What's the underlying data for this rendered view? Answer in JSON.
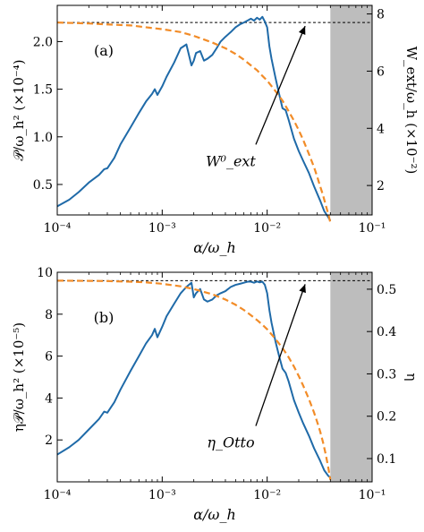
{
  "colors": {
    "blue": "#1f6aa8",
    "orange": "#f28c28",
    "shade": "#bdbdbd",
    "ref": "#000000"
  },
  "chart_data": [
    {
      "type": "line",
      "panel_label": "(a)",
      "xlabel": "α/ω_h",
      "ylabel_left": "𝒫/ω_h² (×10⁻⁴)",
      "ylabel_right": "W_ext/ω_h (×10⁻²)",
      "xscale": "log",
      "xlim": [
        0.0001,
        0.1
      ],
      "ylim_left": [
        0.18,
        2.38
      ],
      "ylim_right": [
        0.97,
        8.3
      ],
      "xticks": [
        0.0001,
        0.001,
        0.01,
        0.1
      ],
      "xtick_labels": [
        "10⁻⁴",
        "10⁻³",
        "10⁻²",
        "10⁻¹"
      ],
      "yticks_left": [
        0.5,
        1.0,
        1.5,
        2.0
      ],
      "ytick_labels_left": [
        "0.5",
        "1.0",
        "1.5",
        "2.0"
      ],
      "yticks_right": [
        2,
        4,
        6,
        8
      ],
      "ytick_labels_right": [
        "2",
        "4",
        "6",
        "8"
      ],
      "shaded_region": [
        0.04,
        0.1
      ],
      "annotation": {
        "text": "W⁰_ext",
        "text_at": [
          0.0045,
          0.75
        ],
        "arrow_to": [
          0.023,
          2.2
        ]
      },
      "reference_line": {
        "y": 2.2,
        "axis": "left",
        "style": "dashed"
      },
      "series": [
        {
          "style": "solid",
          "axis": "left",
          "color_key": "blue",
          "x": [
            0.0001,
            0.00013,
            0.00016,
            0.0002,
            0.00025,
            0.00028,
            0.0003,
            0.00035,
            0.0004,
            0.0005,
            0.0006,
            0.0007,
            0.0008,
            0.00085,
            0.0009,
            0.001,
            0.0011,
            0.0013,
            0.0015,
            0.0017,
            0.0019,
            0.002,
            0.0021,
            0.0023,
            0.0025,
            0.0027,
            0.003,
            0.0033,
            0.0036,
            0.004,
            0.0045,
            0.005,
            0.0055,
            0.006,
            0.0065,
            0.007,
            0.0075,
            0.008,
            0.0085,
            0.009,
            0.0095,
            0.01,
            0.0105,
            0.011,
            0.012,
            0.013,
            0.014,
            0.015,
            0.016,
            0.018,
            0.02,
            0.022,
            0.025,
            0.028,
            0.032,
            0.035,
            0.038,
            0.04
          ],
          "y": [
            0.27,
            0.34,
            0.42,
            0.52,
            0.6,
            0.66,
            0.67,
            0.78,
            0.92,
            1.1,
            1.25,
            1.37,
            1.45,
            1.5,
            1.44,
            1.53,
            1.63,
            1.78,
            1.93,
            1.97,
            1.75,
            1.8,
            1.88,
            1.9,
            1.8,
            1.82,
            1.86,
            1.93,
            2.0,
            2.05,
            2.1,
            2.15,
            2.18,
            2.2,
            2.22,
            2.24,
            2.22,
            2.25,
            2.23,
            2.26,
            2.21,
            2.15,
            1.95,
            1.82,
            1.62,
            1.45,
            1.3,
            1.28,
            1.18,
            0.98,
            0.85,
            0.75,
            0.62,
            0.48,
            0.33,
            0.22,
            0.16,
            0.12
          ]
        },
        {
          "style": "dashed",
          "axis": "left",
          "color_key": "orange",
          "x": [
            0.0001,
            0.0002,
            0.0003,
            0.0005,
            0.0007,
            0.001,
            0.0015,
            0.002,
            0.003,
            0.004,
            0.005,
            0.006,
            0.007,
            0.008,
            0.009,
            0.01,
            0.012,
            0.014,
            0.016,
            0.018,
            0.02,
            0.022,
            0.025,
            0.028,
            0.03,
            0.032,
            0.034,
            0.036,
            0.038,
            0.04
          ],
          "y": [
            2.2,
            2.19,
            2.18,
            2.17,
            2.15,
            2.13,
            2.1,
            2.06,
            1.99,
            1.93,
            1.87,
            1.81,
            1.75,
            1.7,
            1.64,
            1.59,
            1.48,
            1.38,
            1.27,
            1.17,
            1.07,
            0.97,
            0.82,
            0.68,
            0.58,
            0.48,
            0.39,
            0.29,
            0.2,
            0.1
          ]
        }
      ]
    },
    {
      "type": "line",
      "panel_label": "(b)",
      "xlabel": "α/ω_h",
      "ylabel_left": "η𝒫/ω_h² (×10⁻⁵)",
      "ylabel_right": "η",
      "xscale": "log",
      "xlim": [
        0.0001,
        0.1
      ],
      "ylim_left": [
        0.0,
        10.0
      ],
      "ylim_right": [
        0.045,
        0.54
      ],
      "xticks": [
        0.0001,
        0.001,
        0.01,
        0.1
      ],
      "xtick_labels": [
        "10⁻⁴",
        "10⁻³",
        "10⁻²",
        "10⁻¹"
      ],
      "yticks_left": [
        2,
        4,
        6,
        8,
        10
      ],
      "ytick_labels_left": [
        "2",
        "4",
        "6",
        "8",
        "10"
      ],
      "yticks_right": [
        0.1,
        0.2,
        0.3,
        0.4,
        0.5
      ],
      "ytick_labels_right": [
        "0.1",
        "0.2",
        "0.3",
        "0.4",
        "0.5"
      ],
      "shaded_region": [
        0.04,
        0.1
      ],
      "annotation": {
        "text": "η_Otto",
        "text_at": [
          0.0045,
          1.9
        ],
        "arrow_to": [
          0.023,
          9.6
        ]
      },
      "reference_line": {
        "y": 9.6,
        "axis": "left",
        "style": "dashed"
      },
      "series": [
        {
          "style": "solid",
          "axis": "left",
          "color_key": "blue",
          "x": [
            0.0001,
            0.00013,
            0.00016,
            0.0002,
            0.00025,
            0.00028,
            0.0003,
            0.00035,
            0.0004,
            0.0005,
            0.0006,
            0.0007,
            0.0008,
            0.00085,
            0.0009,
            0.001,
            0.0011,
            0.0013,
            0.0015,
            0.0017,
            0.0019,
            0.002,
            0.0021,
            0.0023,
            0.0025,
            0.0027,
            0.003,
            0.0033,
            0.0036,
            0.004,
            0.0045,
            0.005,
            0.0055,
            0.006,
            0.0065,
            0.007,
            0.0075,
            0.008,
            0.0085,
            0.009,
            0.0095,
            0.01,
            0.0105,
            0.011,
            0.012,
            0.013,
            0.014,
            0.015,
            0.016,
            0.018,
            0.02,
            0.022,
            0.025,
            0.028,
            0.032,
            0.035,
            0.038,
            0.04
          ],
          "y": [
            1.3,
            1.65,
            2.0,
            2.5,
            3.0,
            3.35,
            3.3,
            3.8,
            4.4,
            5.3,
            6.0,
            6.6,
            7.0,
            7.3,
            6.9,
            7.4,
            7.9,
            8.5,
            9.0,
            9.3,
            9.5,
            8.8,
            9.0,
            9.2,
            8.7,
            8.6,
            8.7,
            8.9,
            9.0,
            9.1,
            9.3,
            9.4,
            9.45,
            9.5,
            9.55,
            9.55,
            9.5,
            9.56,
            9.52,
            9.55,
            9.4,
            9.0,
            8.2,
            7.6,
            6.7,
            6.0,
            5.4,
            5.2,
            4.8,
            3.9,
            3.3,
            2.8,
            2.2,
            1.6,
            1.0,
            0.55,
            0.3,
            0.2
          ]
        },
        {
          "style": "dashed",
          "axis": "left",
          "color_key": "orange",
          "x": [
            0.0001,
            0.0002,
            0.0003,
            0.0005,
            0.0007,
            0.001,
            0.0015,
            0.002,
            0.003,
            0.004,
            0.005,
            0.006,
            0.007,
            0.008,
            0.009,
            0.01,
            0.012,
            0.014,
            0.016,
            0.018,
            0.02,
            0.022,
            0.025,
            0.028,
            0.03,
            0.032,
            0.034,
            0.036,
            0.038,
            0.04
          ],
          "y": [
            9.6,
            9.59,
            9.58,
            9.55,
            9.52,
            9.45,
            9.33,
            9.2,
            8.95,
            8.7,
            8.45,
            8.2,
            7.95,
            7.72,
            7.5,
            7.28,
            6.82,
            6.38,
            5.95,
            5.5,
            5.05,
            4.6,
            3.95,
            3.3,
            2.85,
            2.4,
            1.9,
            1.35,
            0.75,
            0.1
          ]
        }
      ]
    }
  ]
}
